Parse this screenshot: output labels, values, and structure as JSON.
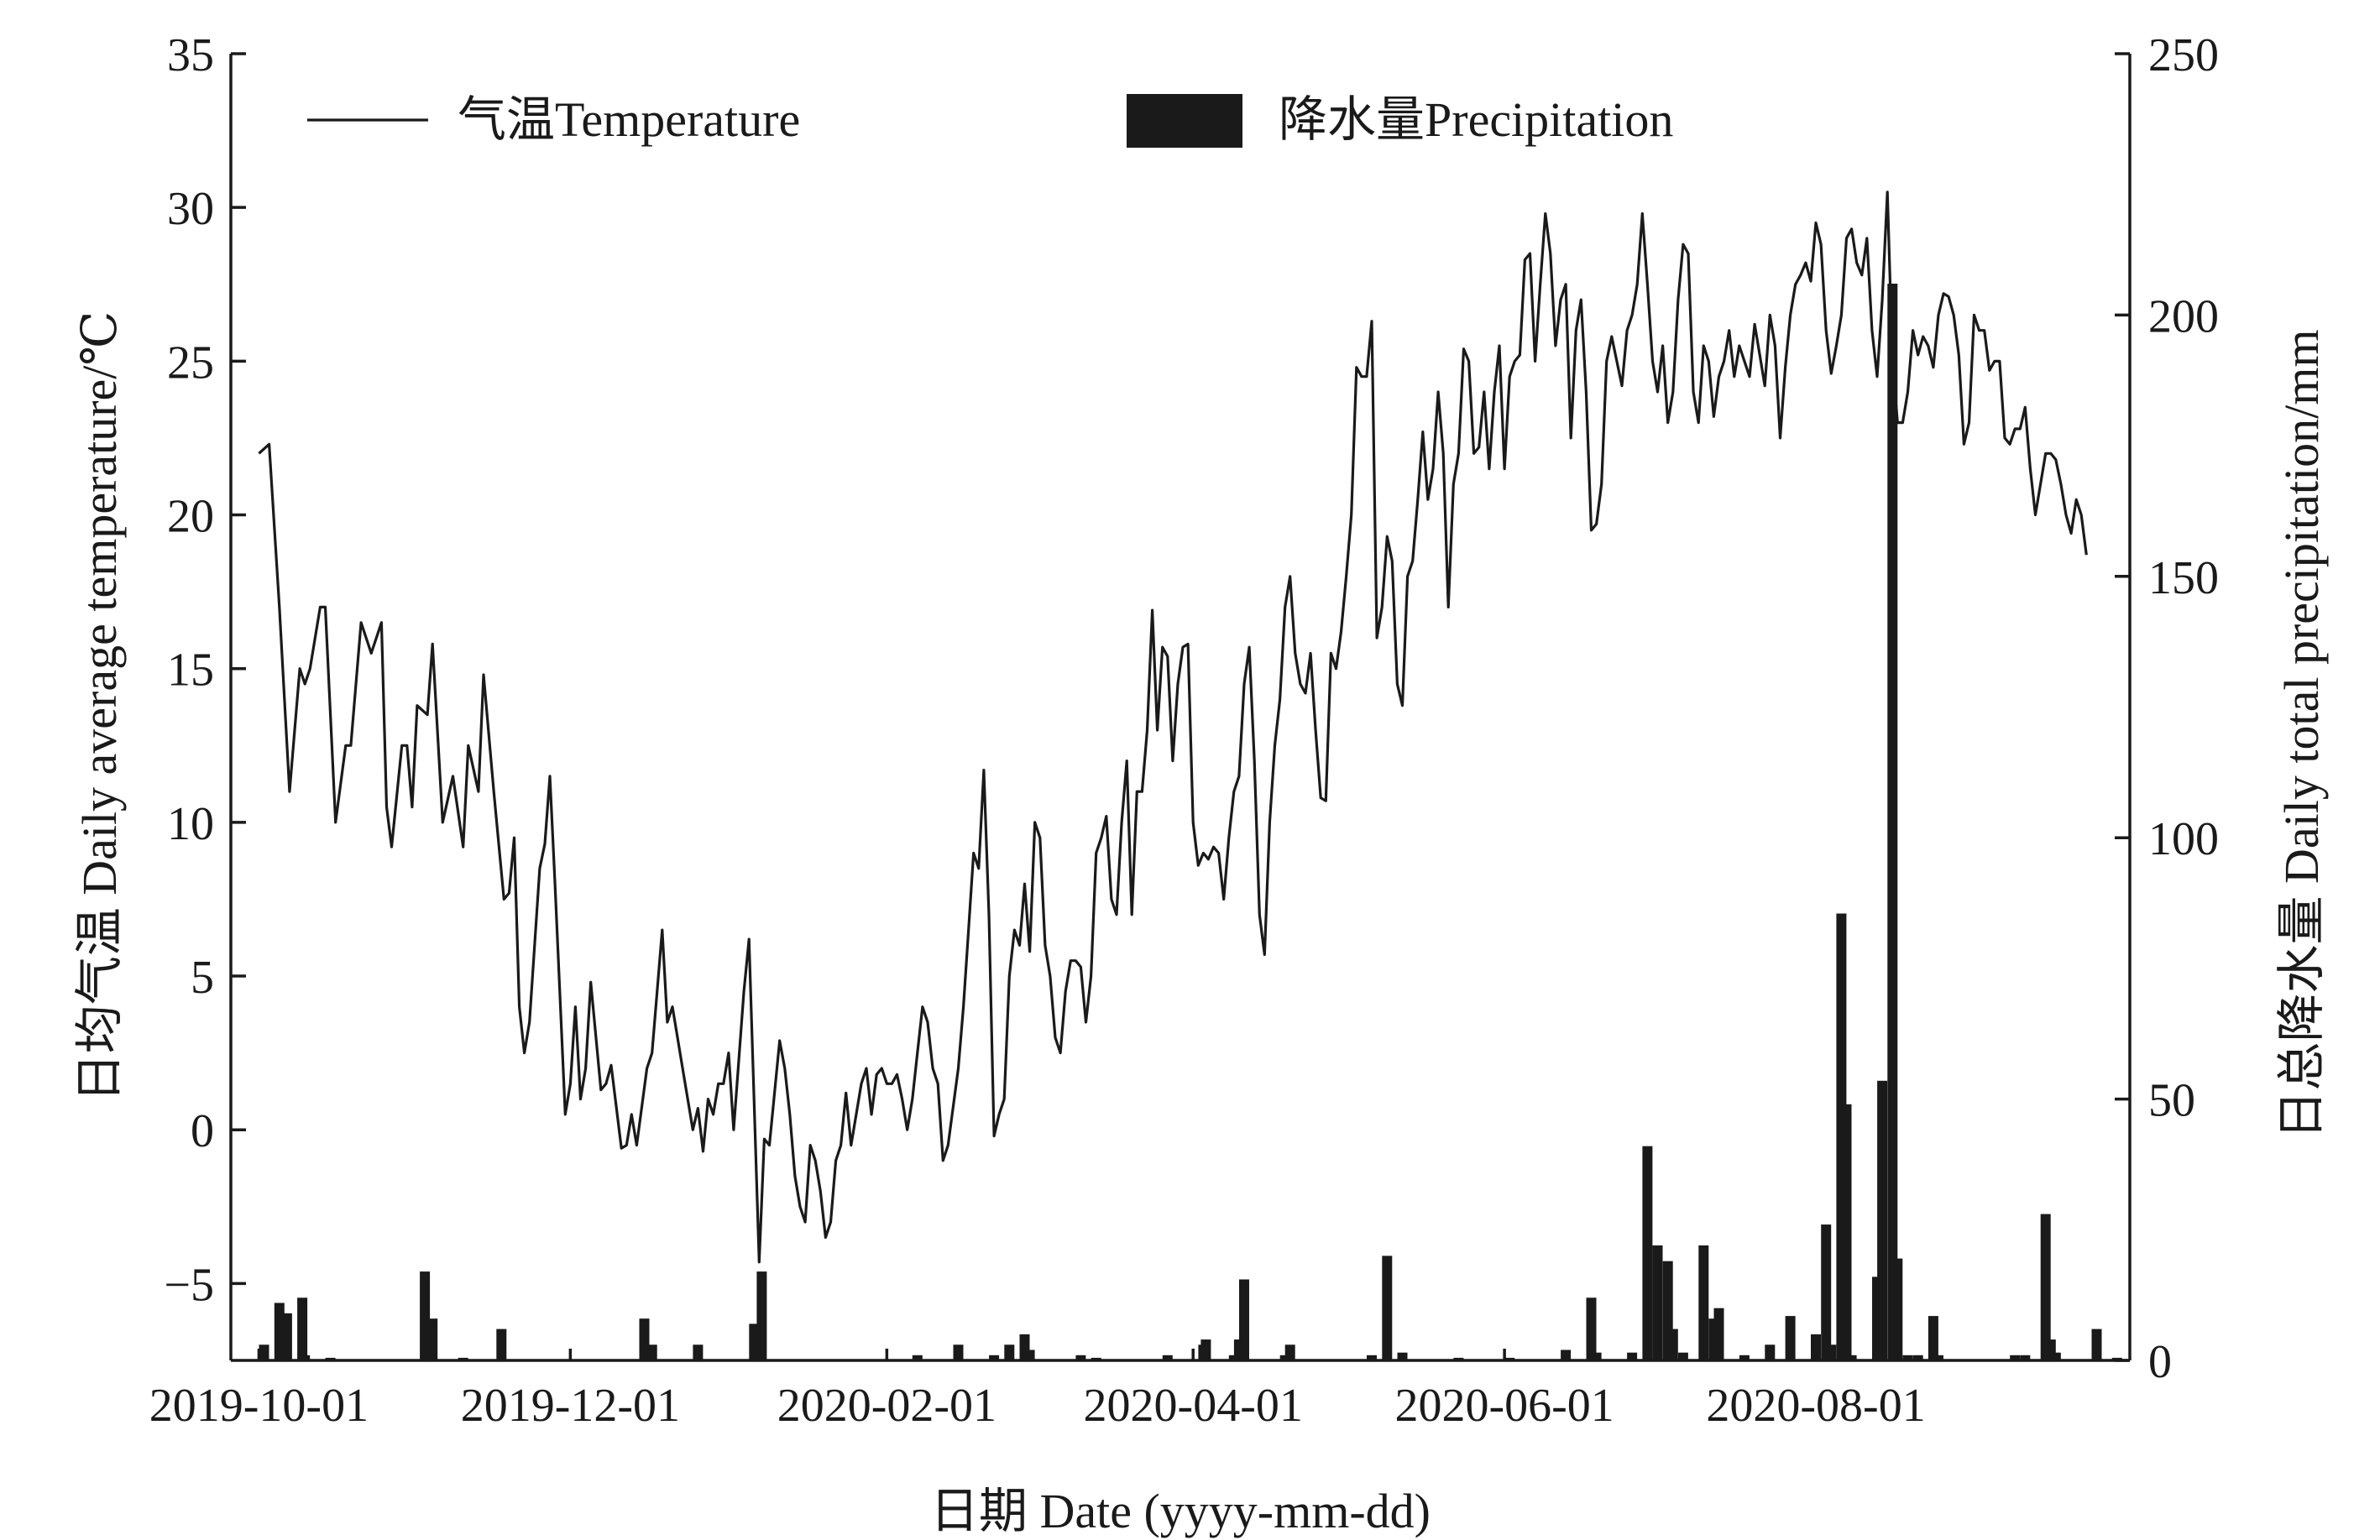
{
  "chart_data": {
    "type": "bar+line",
    "title": "",
    "xlabel": "日期 Date (yyyy-mm-dd)",
    "ylabel_left": "日均气温 Daily average temperature/℃",
    "ylabel_right": "日总降水量 Daily total precipitation/mm",
    "x_start_date": "2019-10-01",
    "x_unit": "days since 2019-10-01",
    "xlim": [
      -5.5,
      366.5
    ],
    "x_ticks": [
      {
        "day": 0,
        "label": "2019-10-01"
      },
      {
        "day": 61,
        "label": "2019-12-01"
      },
      {
        "day": 123,
        "label": "2020-02-01"
      },
      {
        "day": 183,
        "label": "2020-04-01"
      },
      {
        "day": 244,
        "label": "2020-06-01"
      },
      {
        "day": 305,
        "label": "2020-08-01"
      }
    ],
    "ylim_left": [
      -7.5,
      35
    ],
    "yticks_left": [
      -5,
      0,
      5,
      10,
      15,
      20,
      25,
      30,
      35
    ],
    "ylim_right": [
      0,
      250
    ],
    "yticks_right": [
      0,
      50,
      100,
      150,
      200,
      250
    ],
    "grid": false,
    "legend": {
      "placement": "top",
      "entries": [
        {
          "label": "气温Temperature",
          "marker": "line"
        },
        {
          "label": "降水量Precipitation",
          "marker": "bar"
        }
      ]
    },
    "colors": {
      "line": "#1a1a1a",
      "bar": "#1a1a1a",
      "axis": "#1a1a1a"
    },
    "series": [
      {
        "name": "气温Temperature",
        "axis": "left",
        "type": "line",
        "x": [
          0,
          2,
          4,
          6,
          8,
          9,
          10,
          12,
          13,
          15,
          17,
          18,
          20,
          22,
          24,
          25,
          26,
          28,
          29,
          30,
          31,
          33,
          34,
          36,
          38,
          40,
          41,
          43,
          44,
          46,
          48,
          49,
          50,
          51,
          52,
          53,
          55,
          56,
          57,
          58,
          60,
          61,
          62,
          63,
          64,
          65,
          67,
          68,
          69,
          71,
          72,
          73,
          74,
          76,
          77,
          79,
          80,
          81,
          83,
          85,
          86,
          87,
          88,
          89,
          90,
          91,
          92,
          93,
          95,
          96,
          98,
          99,
          100,
          102,
          103,
          104,
          105,
          106,
          107,
          108,
          109,
          110,
          111,
          112,
          113,
          114,
          115,
          116,
          118,
          119,
          120,
          121,
          122,
          123,
          124,
          125,
          126,
          127,
          128,
          129,
          130,
          131,
          132,
          133,
          134,
          135,
          137,
          138,
          139,
          140,
          141,
          142,
          143,
          144,
          145,
          146,
          147,
          148,
          149,
          150,
          151,
          152,
          153,
          154,
          155,
          156,
          157,
          158,
          159,
          160,
          161,
          162,
          163,
          164,
          165,
          166,
          167,
          168,
          169,
          170,
          171,
          172,
          173,
          174,
          175,
          176,
          177,
          178,
          179,
          180,
          181,
          182,
          183,
          184,
          185,
          186,
          187,
          188,
          189,
          190,
          191,
          192,
          193,
          194,
          195,
          196,
          197,
          198,
          199,
          200,
          201,
          202,
          203,
          204,
          205,
          206,
          207,
          208,
          209,
          210,
          211,
          212,
          213,
          214,
          215,
          216,
          217,
          218,
          219,
          220,
          221,
          222,
          223,
          224,
          225,
          226,
          227,
          228,
          229,
          230,
          231,
          232,
          233,
          234,
          235,
          236,
          237,
          238,
          239,
          240,
          241,
          242,
          243,
          244,
          245,
          246,
          247,
          248,
          249,
          250,
          251,
          252,
          253,
          254,
          255,
          256,
          257,
          258,
          259,
          260,
          261,
          262,
          263,
          264,
          265,
          266,
          267,
          268,
          269,
          270,
          271,
          272,
          273,
          274,
          275,
          276,
          277,
          278,
          279,
          280,
          281,
          282,
          283,
          284,
          285,
          286,
          287,
          288,
          289,
          290,
          291,
          292,
          293,
          294,
          295,
          296,
          297,
          298,
          299,
          300,
          301,
          302,
          303,
          304,
          305,
          306,
          307,
          308,
          309,
          310,
          311,
          312,
          313,
          314,
          315,
          316,
          317,
          318,
          319,
          320,
          321,
          322,
          323,
          324,
          325,
          326,
          327,
          328,
          329,
          330,
          331,
          332,
          333,
          334,
          335,
          336,
          337,
          338,
          339,
          340,
          341,
          342,
          343,
          344,
          345,
          346,
          347,
          348,
          349,
          350,
          351,
          352,
          353,
          354,
          355,
          356,
          357,
          358
        ],
        "values": [
          22,
          22.3,
          17,
          11,
          15,
          14.5,
          15,
          17,
          17,
          10,
          12.5,
          12.5,
          16.5,
          15.5,
          16.5,
          10.5,
          9.2,
          12.5,
          12.5,
          10.5,
          13.8,
          13.5,
          15.8,
          10,
          11.5,
          9.2,
          12.5,
          11,
          14.8,
          11,
          7.5,
          7.7,
          9.5,
          4,
          2.5,
          3.5,
          8.5,
          9.3,
          11.5,
          8,
          0.5,
          1.5,
          4,
          1,
          2,
          4.8,
          1.3,
          1.5,
          2.1,
          -0.6,
          -0.5,
          0.5,
          -0.5,
          2,
          2.5,
          6.5,
          3.5,
          4,
          2,
          0,
          0.7,
          -0.7,
          1,
          0.5,
          1.5,
          1.5,
          2.5,
          0,
          4.5,
          6.2,
          -4.3,
          -0.3,
          -0.5,
          2.9,
          2,
          0.5,
          -1.5,
          -2.5,
          -3,
          -0.5,
          -1,
          -2,
          -3.5,
          -3,
          -1,
          -0.5,
          1.2,
          -0.5,
          1.5,
          2,
          0.5,
          1.8,
          2,
          1.5,
          1.5,
          1.8,
          1,
          0,
          1,
          2.5,
          4,
          3.5,
          2,
          1.5,
          -1,
          -0.5,
          2,
          4,
          6.5,
          9,
          8.5,
          11.7,
          7,
          -0.2,
          0.5,
          1,
          5,
          6.5,
          6,
          8,
          5.8,
          10,
          9.5,
          6,
          5,
          3,
          2.5,
          4.5,
          5.5,
          5.5,
          5.3,
          3.5,
          5,
          9,
          9.5,
          10.2,
          7.5,
          7,
          10,
          12,
          7,
          11,
          11,
          13,
          16.9,
          13,
          15.7,
          15.4,
          12,
          14.5,
          15.7,
          15.8,
          10,
          8.6,
          9,
          8.8,
          9.2,
          9,
          7.5,
          9.5,
          11,
          11.5,
          14.5,
          15.7,
          12,
          7,
          5.7,
          10,
          12.5,
          14,
          17,
          18,
          15.5,
          14.5,
          14.2,
          15.5,
          13,
          10.8,
          10.7,
          15.5,
          15,
          16.2,
          18,
          20,
          24.8,
          24.5,
          24.5,
          26.3,
          16,
          17,
          19.3,
          18.5,
          14.5,
          13.8,
          18,
          18.5,
          20.5,
          22.7,
          20.5,
          21.5,
          24,
          22,
          17,
          21,
          22,
          25.4,
          25,
          22,
          22.2,
          24,
          21.5,
          24,
          25.5,
          21.5,
          24.5,
          25,
          25.2,
          28.3,
          28.5,
          25,
          27.5,
          29.8,
          28.5,
          25.5,
          27,
          27.5,
          22.5,
          26,
          27,
          24,
          19.5,
          19.7,
          21,
          25,
          25.8,
          25,
          24.2,
          26,
          26.5,
          27.5,
          29.8,
          27.5,
          25,
          24,
          25.5,
          23,
          24,
          27,
          28.8,
          28.5,
          24,
          23,
          25.5,
          25,
          23.2,
          24.5,
          25,
          26,
          24.5,
          25.5,
          25,
          24.5,
          26.2,
          25.2,
          24.2,
          26.5,
          25.5,
          22.5,
          24.8,
          26.5,
          27.5,
          27.8,
          28.2,
          27.6,
          29.5,
          28.8,
          26,
          24.6,
          25.5,
          26.5,
          29,
          29.3,
          28.2,
          27.8,
          29,
          26,
          24.5,
          27,
          30.5,
          25,
          23,
          23,
          24,
          26,
          25.2,
          25.8,
          25.5,
          24.8,
          26.5,
          27.2,
          27.1,
          26.5,
          25.2,
          22.3,
          23,
          26.5,
          26,
          26,
          24.7,
          25,
          25,
          22.5,
          22.3,
          22.8,
          22.8,
          23.5,
          21.5,
          20,
          21,
          22,
          22,
          21.8,
          21,
          20,
          19.4,
          20.5,
          20,
          18.7
        ]
      },
      {
        "name": "降水量Precipitation",
        "axis": "right",
        "type": "bar",
        "x": [
          1,
          4,
          5.5,
          8.5,
          9,
          14,
          32.5,
          34,
          40,
          47.5,
          75.5,
          77,
          86,
          97,
          98.5,
          129,
          137,
          144,
          147,
          150,
          151,
          161,
          164,
          178,
          185,
          185.5,
          191,
          192,
          193,
          201,
          202,
          218,
          221,
          224,
          235,
          245,
          256,
          261,
          262,
          269,
          272,
          274,
          276,
          277,
          279,
          283,
          285,
          286,
          291,
          296,
          300,
          305,
          307,
          308,
          310,
          311,
          312,
          317,
          318,
          320,
          321,
          323,
          325,
          328,
          329,
          344,
          346,
          350,
          351,
          352,
          360,
          364
        ],
        "values": [
          3,
          11,
          9,
          12,
          1,
          0.5,
          17,
          8,
          0.5,
          6,
          8,
          3,
          3,
          7,
          17,
          1,
          3,
          1,
          3,
          5,
          2,
          1,
          0.5,
          1,
          3,
          4,
          1,
          4,
          15.5,
          1,
          3,
          1,
          20,
          1.5,
          0.5,
          0.5,
          2,
          12,
          1.5,
          1.5,
          41,
          22,
          19,
          6,
          1.5,
          22,
          8,
          10,
          1,
          3,
          8.5,
          5,
          26,
          3,
          85.5,
          49,
          1,
          16,
          53.5,
          206,
          19.5,
          1,
          1,
          8.5,
          1,
          1,
          1,
          28,
          4,
          1.5,
          6,
          0.5
        ]
      }
    ]
  }
}
